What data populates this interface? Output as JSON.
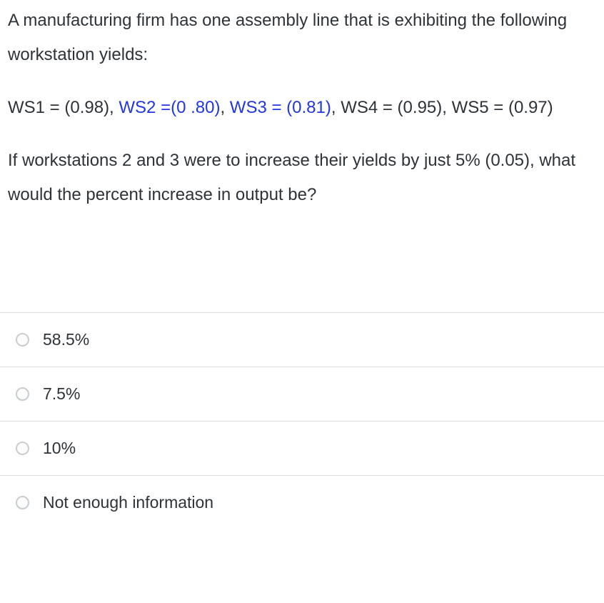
{
  "question": {
    "intro": "A manufacturing firm has one assembly line that is exhibiting the following workstation yields:",
    "yields": {
      "part1": "WS1 = (0.98), ",
      "highlight1": "WS2 =(0 .80)",
      "sep1": ", ",
      "highlight2": "WS3 = (0.81)",
      "part2": ", WS4 = (0.95), WS5 = (0.97)"
    },
    "ask": "If workstations 2 and 3 were to increase their yields by just 5% (0.05), what would the percent increase in output be?"
  },
  "options": [
    {
      "label": "58.5%"
    },
    {
      "label": "7.5%"
    },
    {
      "label": "10%"
    },
    {
      "label": "Not enough information"
    }
  ],
  "colors": {
    "text": "#2e3338",
    "highlight": "#2236e4",
    "divider": "#dcdcdc",
    "radio_border": "#c7cdd1",
    "page_bg": "#ffffff"
  }
}
